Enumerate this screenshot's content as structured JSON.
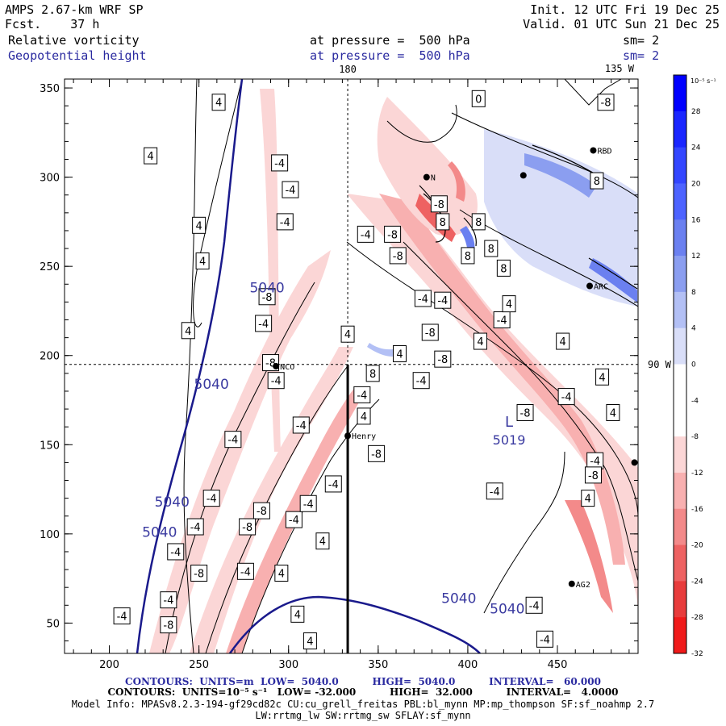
{
  "header": {
    "model": "AMPS 2.67-km WRF SP",
    "init": "Init. 12 UTC Fri 19 Dec 25",
    "fcst": "Fcst.    37 h",
    "valid": "Valid. 01 UTC Sun 21 Dec 25",
    "field1": "Relative vorticity",
    "field1_level": "at pressure =  500 hPa",
    "field1_sm": "sm= 2",
    "field2": "Geopotential height",
    "field2_level": "at pressure =  500 hPa",
    "field2_sm": "sm= 2"
  },
  "footer": {
    "line1": "CONTOURS:  UNITS=m  LOW=  5040.0          HIGH=  5040.0          INTERVAL=   60.000",
    "line2": "CONTOURS:  UNITS=10⁻⁵ s⁻¹   LOW= -32.000          HIGH=  32.000          INTERVAL=   4.0000",
    "line3": "Model Info: MPASv8.2.3-194-gf29cd82c CU:cu_grell_freitas PBL:bl_mynn MP:mp_thompson SF:sf_noahmp 2.7",
    "line4": "LW:rrtmg_lw SW:rrtmg_sw SFLAY:sf_mynn"
  },
  "chart_data": {
    "type": "heatmap",
    "title": "Relative vorticity / Geopotential height at 500 hPa",
    "xlim": [
      175,
      495
    ],
    "ylim": [
      33,
      355
    ],
    "x_ticks": [
      200,
      250,
      300,
      350,
      400,
      450
    ],
    "y_ticks": [
      50,
      100,
      150,
      200,
      250,
      300,
      350
    ],
    "meridians": [
      {
        "x": 333,
        "label": "180"
      }
    ],
    "parallels": [
      {
        "y": 195,
        "label": "90 W"
      }
    ],
    "top_right_label": "135 W",
    "colorbar": {
      "unit_label": "10⁻⁵ s⁻¹",
      "levels": [
        32,
        28,
        24,
        20,
        16,
        12,
        8,
        4,
        0,
        -4,
        -8,
        -12,
        -16,
        -20,
        -24,
        -28,
        -32
      ],
      "colors": [
        "#0000ff",
        "#1a26ff",
        "#3346ff",
        "#4d63ff",
        "#6b80f0",
        "#8b9ef0",
        "#b3c0f5",
        "#d9def8",
        "#ffffff",
        "#ffffff",
        "#fbd6d6",
        "#f8b0b0",
        "#f38a8a",
        "#ee6262",
        "#e83c3c",
        "#f01a1a",
        "#ff0000"
      ]
    },
    "height_labels": [
      {
        "x": 288,
        "y": 238,
        "text": "5040"
      },
      {
        "x": 257,
        "y": 184,
        "text": "5040"
      },
      {
        "x": 235,
        "y": 118,
        "text": "5040"
      },
      {
        "x": 228,
        "y": 101,
        "text": "5040"
      },
      {
        "x": 395,
        "y": 64,
        "text": "5040"
      },
      {
        "x": 422,
        "y": 58,
        "text": "5040"
      }
    ],
    "low_center": {
      "x": 423,
      "y": 160,
      "label": "L",
      "value": "5019"
    },
    "stations": [
      {
        "x": 293,
        "y": 194,
        "name": "NCO"
      },
      {
        "x": 333,
        "y": 155,
        "name": "Henry"
      },
      {
        "x": 458,
        "y": 72,
        "name": "AG2"
      },
      {
        "x": 468,
        "y": 239,
        "name": "ARC"
      },
      {
        "x": 470,
        "y": 315,
        "name": "RBD"
      },
      {
        "x": 431,
        "y": 301,
        "name": ""
      },
      {
        "x": 377,
        "y": 300,
        "name": "N"
      },
      {
        "x": 493,
        "y": 140,
        "name": ""
      }
    ],
    "contour_labels": [
      {
        "x": 261,
        "y": 342,
        "text": "4"
      },
      {
        "x": 223,
        "y": 312,
        "text": "4"
      },
      {
        "x": 295,
        "y": 308,
        "text": "-4"
      },
      {
        "x": 301,
        "y": 293,
        "text": "-4"
      },
      {
        "x": 250,
        "y": 273,
        "text": "4"
      },
      {
        "x": 298,
        "y": 275,
        "text": "-4"
      },
      {
        "x": 252,
        "y": 253,
        "text": "4"
      },
      {
        "x": 288,
        "y": 233,
        "text": "-8"
      },
      {
        "x": 244,
        "y": 214,
        "text": "4"
      },
      {
        "x": 286,
        "y": 218,
        "text": "-4"
      },
      {
        "x": 290,
        "y": 196,
        "text": "-8"
      },
      {
        "x": 293,
        "y": 186,
        "text": "-4"
      },
      {
        "x": 269,
        "y": 153,
        "text": "-4"
      },
      {
        "x": 307,
        "y": 161,
        "text": "-4"
      },
      {
        "x": 257,
        "y": 120,
        "text": "-4"
      },
      {
        "x": 248,
        "y": 104,
        "text": "-4"
      },
      {
        "x": 237,
        "y": 90,
        "text": "-4"
      },
      {
        "x": 233,
        "y": 63,
        "text": "-4"
      },
      {
        "x": 250,
        "y": 78,
        "text": "-8"
      },
      {
        "x": 233,
        "y": 49,
        "text": "-8"
      },
      {
        "x": 207,
        "y": 54,
        "text": "-4"
      },
      {
        "x": 276,
        "y": 79,
        "text": "-4"
      },
      {
        "x": 285,
        "y": 113,
        "text": "-8"
      },
      {
        "x": 277,
        "y": 104,
        "text": "-8"
      },
      {
        "x": 303,
        "y": 108,
        "text": "-4"
      },
      {
        "x": 311,
        "y": 117,
        "text": "-4"
      },
      {
        "x": 319,
        "y": 96,
        "text": "4"
      },
      {
        "x": 296,
        "y": 78,
        "text": "4"
      },
      {
        "x": 305,
        "y": 55,
        "text": "4"
      },
      {
        "x": 325,
        "y": 128,
        "text": "-4"
      },
      {
        "x": 349,
        "y": 145,
        "text": "-8"
      },
      {
        "x": 342,
        "y": 166,
        "text": "4"
      },
      {
        "x": 341,
        "y": 178,
        "text": "-4"
      },
      {
        "x": 347,
        "y": 190,
        "text": "8"
      },
      {
        "x": 333,
        "y": 212,
        "text": "4"
      },
      {
        "x": 362,
        "y": 201,
        "text": "4"
      },
      {
        "x": 343,
        "y": 268,
        "text": "-4"
      },
      {
        "x": 358,
        "y": 268,
        "text": "-8"
      },
      {
        "x": 361,
        "y": 256,
        "text": "-8"
      },
      {
        "x": 375,
        "y": 232,
        "text": "-4"
      },
      {
        "x": 386,
        "y": 231,
        "text": "-4"
      },
      {
        "x": 379,
        "y": 213,
        "text": "-8"
      },
      {
        "x": 386,
        "y": 198,
        "text": "-8"
      },
      {
        "x": 374,
        "y": 186,
        "text": "-4"
      },
      {
        "x": 407,
        "y": 208,
        "text": "4"
      },
      {
        "x": 419,
        "y": 220,
        "text": "-4"
      },
      {
        "x": 400,
        "y": 256,
        "text": "8"
      },
      {
        "x": 406,
        "y": 275,
        "text": "8"
      },
      {
        "x": 413,
        "y": 260,
        "text": "8"
      },
      {
        "x": 420,
        "y": 249,
        "text": "8"
      },
      {
        "x": 423,
        "y": 229,
        "text": "4"
      },
      {
        "x": 432,
        "y": 168,
        "text": "-8"
      },
      {
        "x": 455,
        "y": 177,
        "text": "-4"
      },
      {
        "x": 475,
        "y": 188,
        "text": "4"
      },
      {
        "x": 481,
        "y": 168,
        "text": "4"
      },
      {
        "x": 471,
        "y": 141,
        "text": "-4"
      },
      {
        "x": 470,
        "y": 133,
        "text": "-8"
      },
      {
        "x": 467,
        "y": 120,
        "text": "4"
      },
      {
        "x": 415,
        "y": 124,
        "text": "-4"
      },
      {
        "x": 437,
        "y": 60,
        "text": "-4"
      },
      {
        "x": 443,
        "y": 41,
        "text": "-4"
      },
      {
        "x": 477,
        "y": 342,
        "text": "-8"
      },
      {
        "x": 453,
        "y": 208,
        "text": "4"
      },
      {
        "x": 384,
        "y": 285,
        "text": "-8"
      },
      {
        "x": 386,
        "y": 275,
        "text": "8"
      },
      {
        "x": 406,
        "y": 344,
        "text": "0"
      },
      {
        "x": 472,
        "y": 298,
        "text": "8"
      },
      {
        "x": 312,
        "y": 40,
        "text": "4"
      }
    ]
  }
}
